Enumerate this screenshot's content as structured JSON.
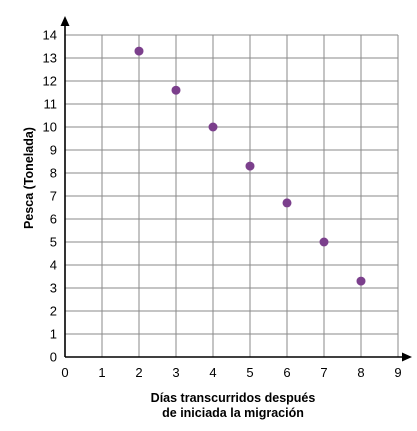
{
  "chart_data": {
    "type": "scatter",
    "title": "",
    "xlabel_lines": [
      "Días transcurridos después",
      "de iniciada la migración"
    ],
    "ylabel": "Pesca (Tonelada)",
    "xlim": [
      0,
      9
    ],
    "ylim": [
      0,
      14
    ],
    "x_ticks": [
      0,
      1,
      2,
      3,
      4,
      5,
      6,
      7,
      8,
      9
    ],
    "y_ticks": [
      0,
      1,
      2,
      3,
      4,
      5,
      6,
      7,
      8,
      9,
      10,
      11,
      12,
      13,
      14
    ],
    "grid": true,
    "point_color": "#7b3f8c",
    "points": [
      {
        "x": 2,
        "y": 13.3
      },
      {
        "x": 3,
        "y": 11.6
      },
      {
        "x": 4,
        "y": 10.0
      },
      {
        "x": 5,
        "y": 8.3
      },
      {
        "x": 6,
        "y": 6.7
      },
      {
        "x": 7,
        "y": 5.0
      },
      {
        "x": 8,
        "y": 3.3
      }
    ]
  }
}
